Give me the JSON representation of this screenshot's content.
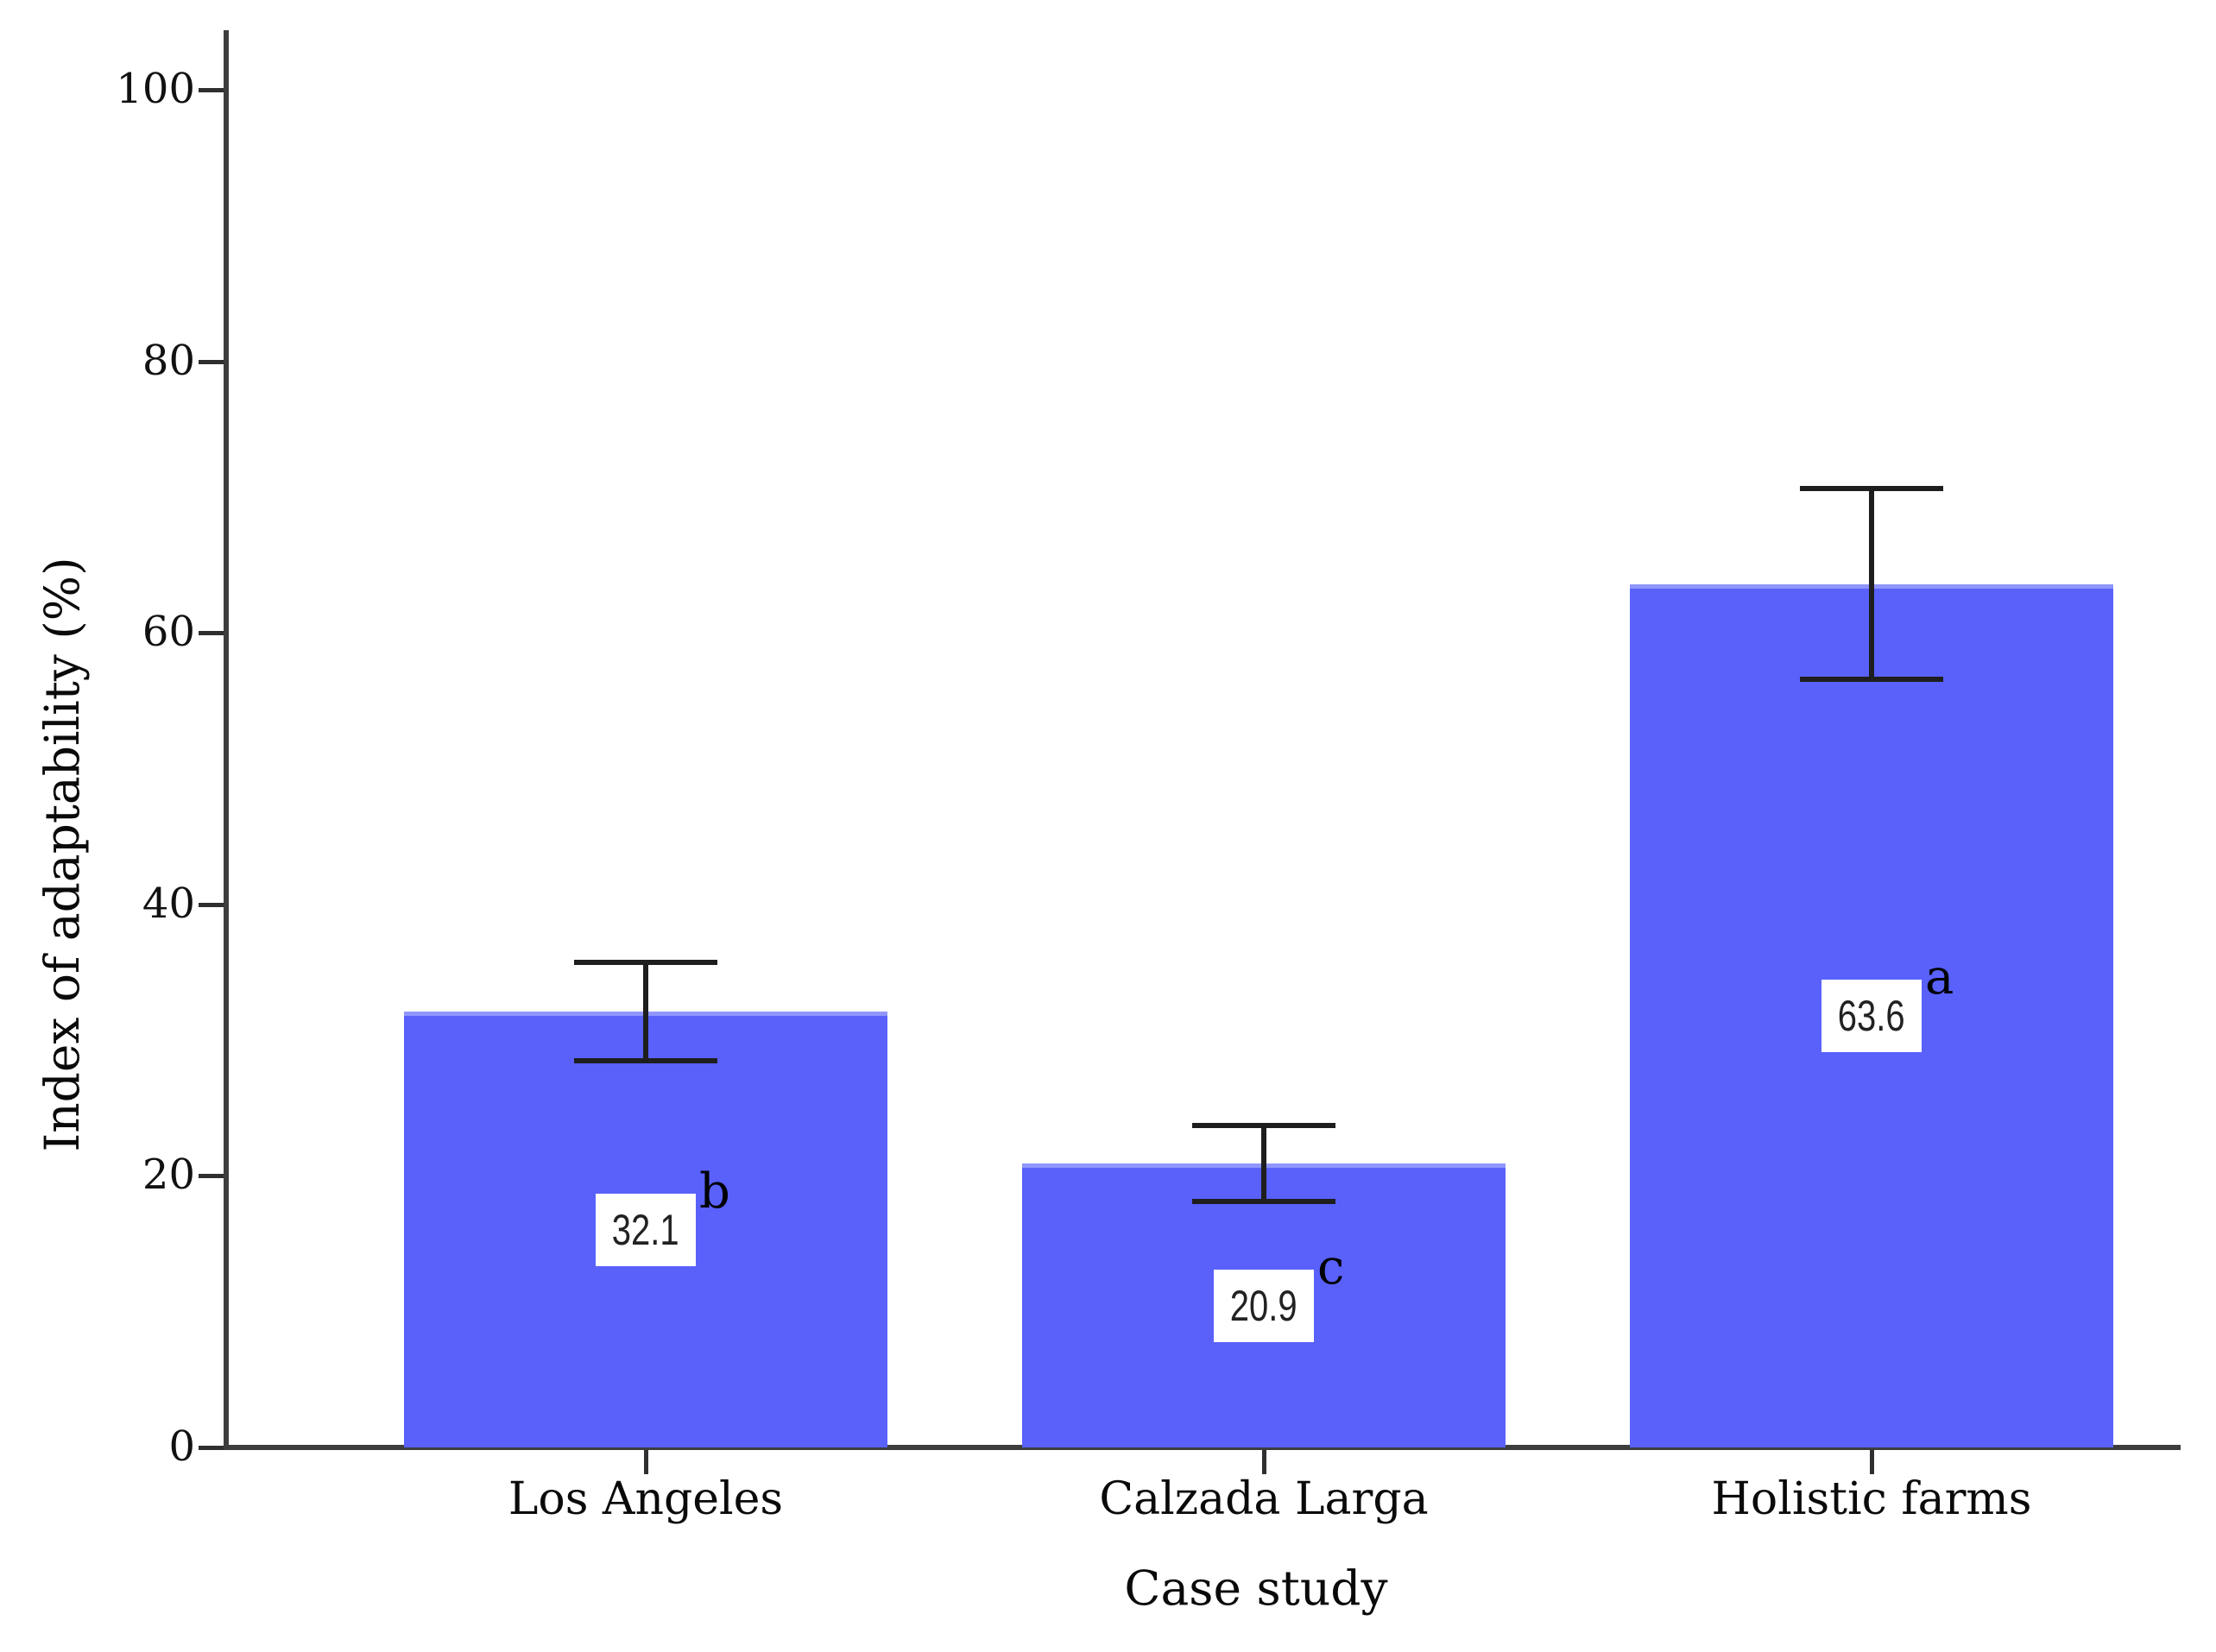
{
  "chart_data": {
    "type": "bar",
    "title": "",
    "xlabel": "Case study",
    "ylabel": "Index of adaptability (%)",
    "categories": [
      "Los Angeles",
      "Calzada Larga",
      "Holistic farms"
    ],
    "values": [
      32.1,
      20.9,
      63.6
    ],
    "value_labels": [
      "32.1",
      "20.9",
      "63.6"
    ],
    "errors": [
      3.6,
      2.8,
      7.0
    ],
    "significance_letters": [
      "b",
      "c",
      "a"
    ],
    "yticks": [
      0,
      20,
      40,
      60,
      80,
      100
    ],
    "ytick_labels": [
      "0",
      "20",
      "40",
      "60",
      "80",
      "100"
    ],
    "ylim": [
      0,
      100
    ],
    "grid": false,
    "legend": null,
    "colors": {
      "bar_fill": "#5961fa",
      "bar_top_highlight": "#9096fb",
      "axis_line": "#3d3d3d",
      "tick_mark": "#2f2f2f",
      "error_bar": "#1e1e1e",
      "value_box_bg": "#ffffff",
      "value_text": "#222222",
      "label_text": "#0a0a0a"
    }
  }
}
